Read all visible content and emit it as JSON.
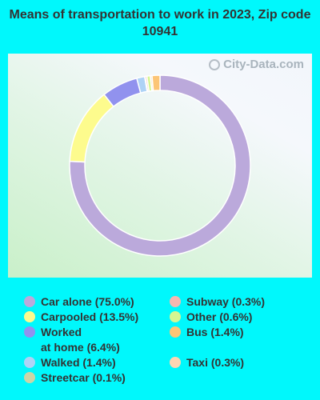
{
  "title": "Means of transportation to work in 2023, Zip code 10941",
  "watermark": "City-Data.com",
  "colors": {
    "background": "#00f8fc",
    "ring_border": "#ffffff"
  },
  "chart_data": {
    "type": "pie",
    "donut": true,
    "title": "Means of transportation to work in 2023, Zip code 10941",
    "legend_position": "bottom",
    "slices": [
      {
        "label": "Car alone (75.0%)",
        "value": 75.0,
        "color": "#bba9db"
      },
      {
        "label": "Carpooled (13.5%)",
        "value": 13.5,
        "color": "#fdfb8d"
      },
      {
        "label": "Worked\nat home (6.4%)",
        "value": 6.4,
        "color": "#9192ee"
      },
      {
        "label": "Walked (1.4%)",
        "value": 1.4,
        "color": "#aed3f6"
      },
      {
        "label": "Streetcar (0.1%)",
        "value": 0.1,
        "color": "#cbd5a7"
      },
      {
        "label": "Subway (0.3%)",
        "value": 0.3,
        "color": "#f5b7b0"
      },
      {
        "label": "Other (0.6%)",
        "value": 0.6,
        "color": "#d5f691"
      },
      {
        "label": "Taxi (0.3%)",
        "value": 0.3,
        "color": "#fcd6b3"
      },
      {
        "label": "Bus (1.4%)",
        "value": 1.4,
        "color": "#fcc576"
      }
    ]
  }
}
